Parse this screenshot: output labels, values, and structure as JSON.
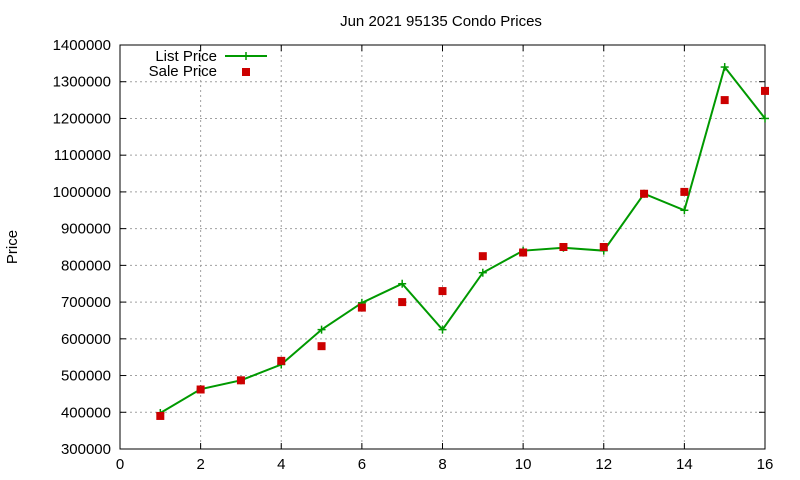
{
  "chart_data": {
    "type": "line",
    "title": "Jun 2021 95135 Condo Prices",
    "xlabel": "",
    "ylabel": "Price",
    "xlim": [
      0,
      16
    ],
    "ylim": [
      300000,
      1400000
    ],
    "xticks": [
      0,
      2,
      4,
      6,
      8,
      10,
      12,
      14,
      16
    ],
    "yticks": [
      300000,
      400000,
      500000,
      600000,
      700000,
      800000,
      900000,
      1000000,
      1100000,
      1200000,
      1300000,
      1400000
    ],
    "grid": true,
    "legend_position": "top-left",
    "series": [
      {
        "name": "List Price",
        "style": "line-with-plus-markers",
        "color": "#009900",
        "x": [
          1,
          2,
          3,
          4,
          5,
          6,
          7,
          8,
          9,
          10,
          11,
          12,
          13,
          14,
          15,
          16
        ],
        "y": [
          398000,
          463000,
          487000,
          530000,
          625000,
          698000,
          750000,
          625000,
          780000,
          840000,
          848000,
          840000,
          995000,
          950000,
          1340000,
          1200000
        ]
      },
      {
        "name": "Sale Price",
        "style": "square-markers",
        "color": "#cc0000",
        "x": [
          1,
          2,
          3,
          4,
          5,
          6,
          7,
          8,
          9,
          10,
          11,
          12,
          13,
          14,
          15,
          16
        ],
        "y": [
          390000,
          462000,
          487000,
          540000,
          580000,
          685000,
          700000,
          730000,
          825000,
          835000,
          850000,
          850000,
          995000,
          1000000,
          1250000,
          1275000
        ]
      }
    ]
  }
}
